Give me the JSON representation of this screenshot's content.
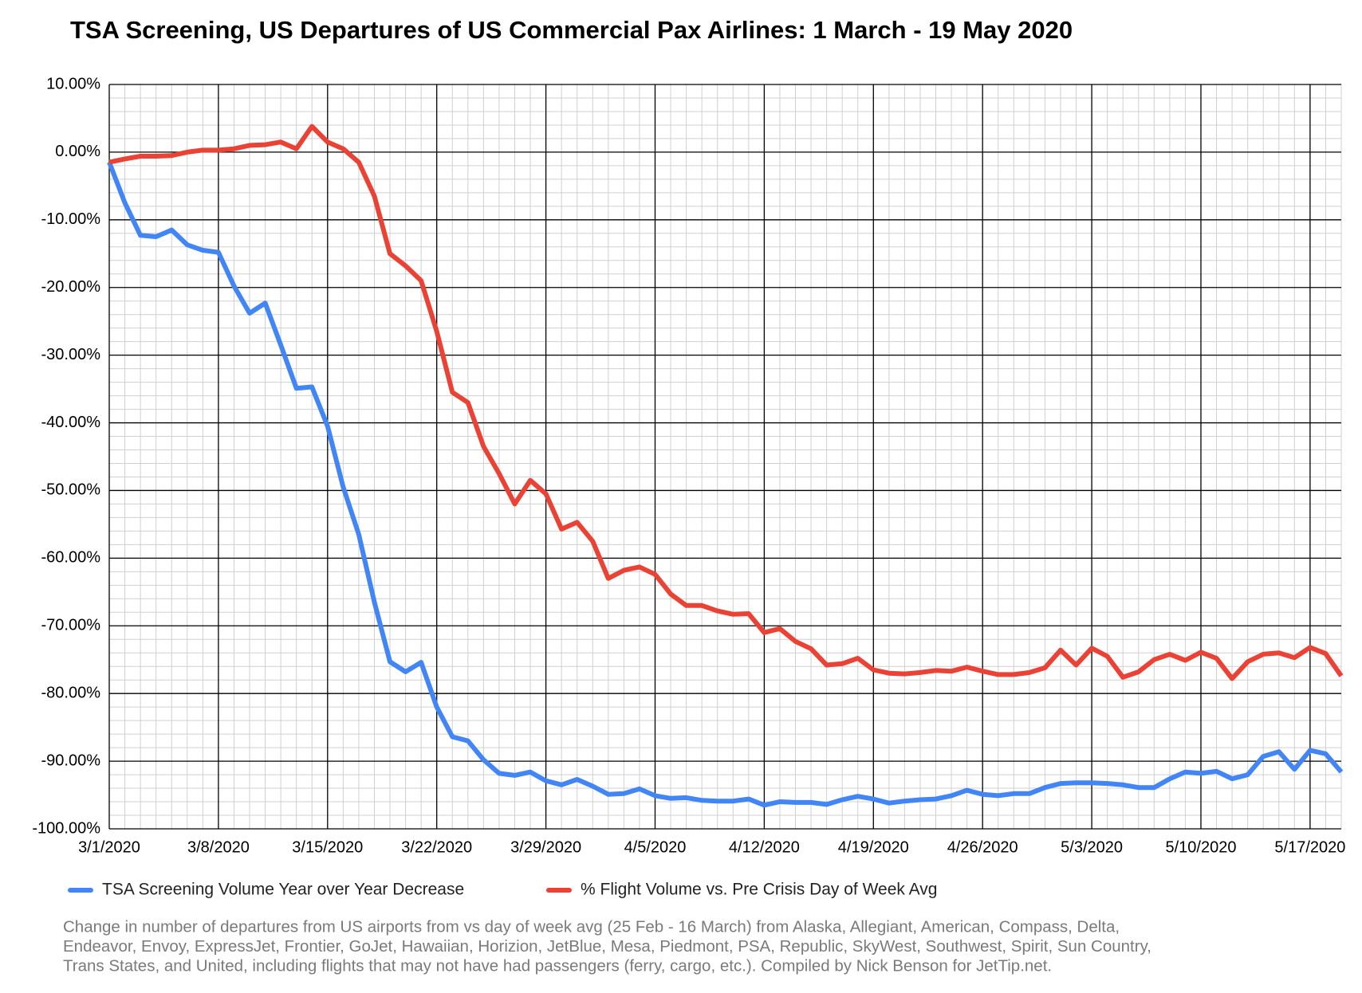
{
  "chart_data": {
    "type": "line",
    "title": "TSA Screening, US Departures of US Commercial Pax Airlines: 1 March - 19 May 2020",
    "categories": [
      "3/1/2020",
      null,
      null,
      null,
      null,
      null,
      null,
      "3/8/2020",
      null,
      null,
      null,
      null,
      null,
      null,
      "3/15/2020",
      null,
      null,
      null,
      null,
      null,
      null,
      "3/22/2020",
      null,
      null,
      null,
      null,
      null,
      null,
      "3/29/2020",
      null,
      null,
      null,
      null,
      null,
      null,
      "4/5/2020",
      null,
      null,
      null,
      null,
      null,
      null,
      "4/12/2020",
      null,
      null,
      null,
      null,
      null,
      null,
      "4/19/2020",
      null,
      null,
      null,
      null,
      null,
      null,
      "4/26/2020",
      null,
      null,
      null,
      null,
      null,
      null,
      "5/3/2020",
      null,
      null,
      null,
      null,
      null,
      null,
      "5/10/2020",
      null,
      null,
      null,
      null,
      null,
      null,
      "5/17/2020",
      null,
      null
    ],
    "series": [
      {
        "name": "TSA Screening Volume Year over Year Decrease",
        "color": "#4285f4",
        "values": [
          -1.5,
          -7.5,
          -12.3,
          -12.5,
          -11.5,
          -13.7,
          -14.5,
          -14.8,
          -19.8,
          -23.8,
          -22.3,
          -28.5,
          -34.9,
          -34.7,
          -40.5,
          -49.5,
          -56.5,
          -66.5,
          -75.3,
          -76.8,
          -75.4,
          -82,
          -86.4,
          -87,
          -89.8,
          -91.8,
          -92.1,
          -91.6,
          -92.9,
          -93.5,
          -92.7,
          -93.7,
          -94.9,
          -94.8,
          -94.1,
          -95.1,
          -95.5,
          -95.4,
          -95.8,
          -95.9,
          -95.9,
          -95.6,
          -96.5,
          -96,
          -96.1,
          -96.1,
          -96.4,
          -95.7,
          -95.2,
          -95.6,
          -96.2,
          -95.9,
          -95.7,
          -95.6,
          -95.1,
          -94.3,
          -94.9,
          -95.1,
          -94.8,
          -94.8,
          -93.9,
          -93.3,
          -93.2,
          -93.2,
          -93.3,
          -93.5,
          -93.9,
          -93.9,
          -92.6,
          -91.6,
          -91.8,
          -91.5,
          -92.6,
          -92,
          -89.3,
          -88.6,
          -91.2,
          -88.4,
          -88.9,
          -91.6
        ]
      },
      {
        "name": "% Flight Volume vs. Pre Crisis Day of Week Avg",
        "color": "#ea4335",
        "values": [
          -1.5,
          -1,
          -0.6,
          -0.6,
          -0.5,
          0,
          0.3,
          0.3,
          0.5,
          1,
          1.1,
          1.5,
          0.5,
          3.8,
          1.5,
          0.5,
          -1.5,
          -6.5,
          -15,
          -16.8,
          -19,
          -26.5,
          -35.5,
          -37,
          -43.5,
          -47.5,
          -52,
          -48.5,
          -50.5,
          -55.7,
          -54.7,
          -57.5,
          -63,
          -61.8,
          -61.3,
          -62.4,
          -65.3,
          -67,
          -67,
          -67.8,
          -68.3,
          -68.2,
          -71,
          -70.4,
          -72.3,
          -73.4,
          -75.8,
          -75.6,
          -74.8,
          -76.5,
          -77,
          -77.1,
          -76.9,
          -76.6,
          -76.7,
          -76.1,
          -76.7,
          -77.2,
          -77.2,
          -76.9,
          -76.2,
          -73.6,
          -75.8,
          -73.3,
          -74.5,
          -77.6,
          -76.8,
          -75,
          -74.2,
          -75.1,
          -73.9,
          -74.8,
          -77.8,
          -75.3,
          -74.2,
          -74,
          -74.7,
          -73.2,
          -74.1,
          -77.4
        ]
      }
    ],
    "ylim": [
      -100,
      10
    ],
    "yticks": [
      {
        "value": -100,
        "label": "-100.00%"
      },
      {
        "value": -90,
        "label": "-90.00%"
      },
      {
        "value": -80,
        "label": "-80.00%"
      },
      {
        "value": -70,
        "label": "-70.00%"
      },
      {
        "value": -60,
        "label": "-60.00%"
      },
      {
        "value": -50,
        "label": "-50.00%"
      },
      {
        "value": -40,
        "label": "-40.00%"
      },
      {
        "value": -30,
        "label": "-30.00%"
      },
      {
        "value": -20,
        "label": "-20.00%"
      },
      {
        "value": -10,
        "label": "-10.00%"
      },
      {
        "value": 0,
        "label": "0.00%"
      },
      {
        "value": 10,
        "label": "10.00%"
      }
    ],
    "grid": true,
    "legend": "bottom",
    "footnote": [
      "Change in number of departures from US airports from vs day of week avg (25 Feb - 16 March) from Alaska, Allegiant, American, Compass, Delta,",
      "Endeavor, Envoy, ExpressJet, Frontier, GoJet, Hawaiian, Horizion, JetBlue, Mesa, Piedmont, PSA, Republic, SkyWest, Southwest, Spirit, Sun Country,",
      "Trans States, and United, including flights that may not have had passengers (ferry, cargo, etc.). Compiled by Nick Benson for JetTip.net."
    ]
  }
}
